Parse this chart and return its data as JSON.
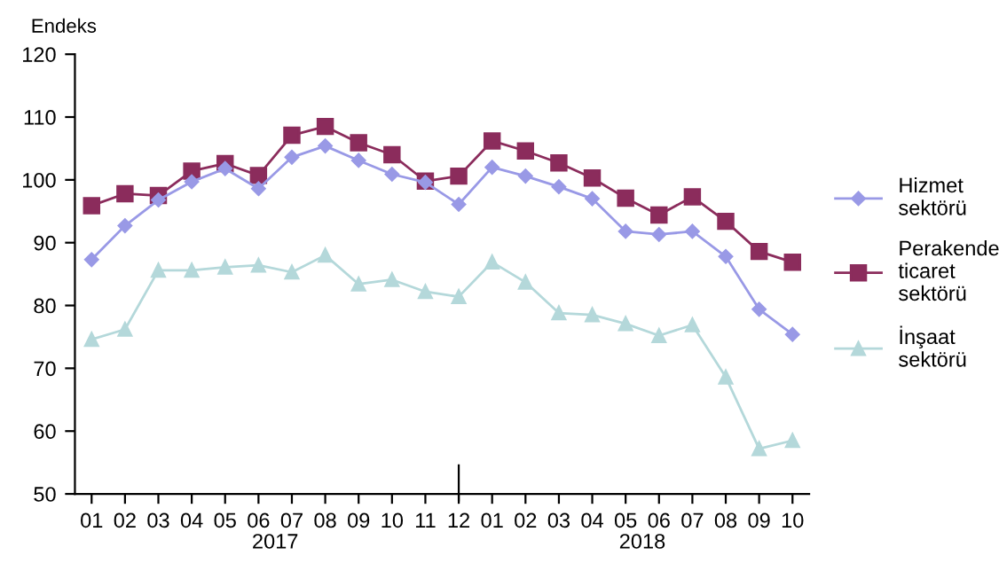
{
  "chart_data": {
    "type": "line",
    "ylabel": "Endeks",
    "categories": [
      "01",
      "02",
      "03",
      "04",
      "05",
      "06",
      "07",
      "08",
      "09",
      "10",
      "11",
      "12",
      "01",
      "02",
      "03",
      "04",
      "05",
      "06",
      "07",
      "08",
      "09",
      "10"
    ],
    "ylim": [
      50,
      120
    ],
    "yticks": [
      50,
      60,
      70,
      80,
      90,
      100,
      110,
      120
    ],
    "grid": false,
    "legend": "right",
    "annotations": [
      "2017",
      "2018"
    ],
    "series": [
      {
        "name": "Hizmet sektörü",
        "color": "#9999e6",
        "marker": "diamond",
        "values": [
          87.3,
          92.7,
          96.8,
          99.7,
          101.8,
          98.6,
          103.6,
          105.4,
          103.1,
          100.9,
          99.6,
          96.1,
          102.0,
          100.6,
          98.9,
          97.0,
          91.8,
          91.3,
          91.8,
          87.8,
          79.4,
          75.4
        ]
      },
      {
        "name": "Perakende ticaret sektörü",
        "color": "#8b2c5c",
        "marker": "square",
        "values": [
          95.9,
          97.8,
          97.5,
          101.4,
          102.6,
          100.7,
          107.1,
          108.5,
          105.9,
          104.0,
          99.8,
          100.6,
          106.2,
          104.6,
          102.7,
          100.3,
          97.1,
          94.4,
          97.3,
          93.4,
          88.6,
          86.9
        ]
      },
      {
        "name": "İnşaat sektörü",
        "color": "#b4d8da",
        "marker": "triangle",
        "values": [
          74.6,
          76.2,
          85.6,
          85.6,
          86.1,
          86.4,
          85.3,
          88.0,
          83.4,
          84.1,
          82.2,
          81.4,
          86.9,
          83.7,
          78.8,
          78.5,
          77.1,
          75.2,
          76.9,
          68.6,
          57.2,
          58.5
        ]
      }
    ]
  }
}
